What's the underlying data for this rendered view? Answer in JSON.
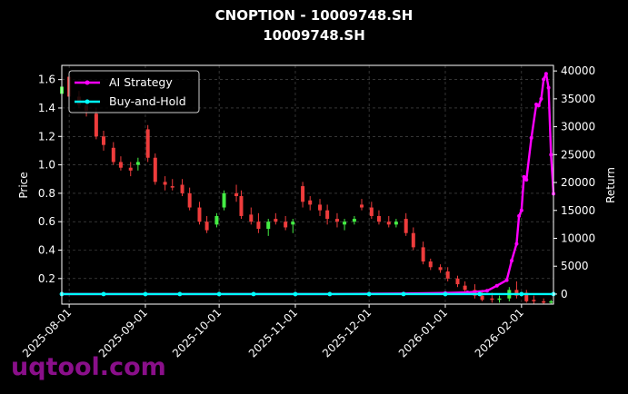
{
  "chart_data": {
    "type": "candlestick-line",
    "title": "CNOPTION - 10009748.SH",
    "subtitle": "10009748.SH",
    "ylabel_left": "Price",
    "ylabel_right": "Return",
    "ylim_left": [
      0.02,
      1.7
    ],
    "ylim_right": [
      -1800,
      41000
    ],
    "y_ticks_left": [
      "0.2",
      "0.4",
      "0.6",
      "0.8",
      "1.0",
      "1.2",
      "1.4",
      "1.6"
    ],
    "y_ticks_right": [
      "0",
      "5000",
      "10000",
      "15000",
      "20000",
      "25000",
      "30000",
      "35000",
      "40000"
    ],
    "x_ticks": [
      "2025-08-01",
      "2025-09-01",
      "2025-10-01",
      "2025-11-01",
      "2025-12-01",
      "2026-01-01",
      "2026-02-01"
    ],
    "xlim": [
      "2025-07-29",
      "2026-02-14"
    ],
    "grid": true,
    "legend_position": "upper-left",
    "colors": {
      "background": "#000000",
      "up_candle": "#44ee44",
      "down_candle": "#ee3c3c",
      "ai_strategy": "#ff00ff",
      "buy_and_hold": "#00ffff",
      "grid": "#555555",
      "watermark": "#8a0f8a"
    },
    "series": [
      {
        "name": "AI Strategy",
        "x": [
          "2025-07-29",
          "2025-08-15",
          "2025-09-01",
          "2025-09-15",
          "2025-10-01",
          "2025-10-15",
          "2025-11-01",
          "2025-11-15",
          "2025-12-01",
          "2025-12-15",
          "2026-01-01",
          "2026-01-10",
          "2026-01-18",
          "2026-01-22",
          "2026-01-26",
          "2026-01-28",
          "2026-01-30",
          "2026-01-31",
          "2026-02-01",
          "2026-02-02",
          "2026-02-03",
          "2026-02-05",
          "2026-02-07",
          "2026-02-08",
          "2026-02-09",
          "2026-02-10",
          "2026-02-11",
          "2026-02-12",
          "2026-02-13",
          "2026-02-14"
        ],
        "values": [
          0,
          0,
          0,
          0,
          0,
          0,
          0,
          0,
          50,
          100,
          200,
          300,
          600,
          1500,
          2500,
          6000,
          9000,
          14000,
          15000,
          21000,
          20500,
          28000,
          34000,
          33800,
          35000,
          38500,
          39500,
          37000,
          25000,
          18000
        ]
      },
      {
        "name": "Buy-and-Hold",
        "x": [
          "2025-07-29",
          "2025-08-15",
          "2025-09-01",
          "2025-09-15",
          "2025-10-01",
          "2025-10-15",
          "2025-11-01",
          "2025-11-15",
          "2025-12-01",
          "2025-12-15",
          "2026-01-01",
          "2026-01-15",
          "2026-02-01",
          "2026-02-14"
        ],
        "values": [
          0,
          0,
          0,
          0,
          0,
          0,
          0,
          0,
          0,
          0,
          0,
          0,
          0,
          0
        ]
      }
    ],
    "candles": {
      "dates": [
        "2025-07-29",
        "2025-08-01",
        "2025-08-05",
        "2025-08-08",
        "2025-08-12",
        "2025-08-15",
        "2025-08-19",
        "2025-08-22",
        "2025-08-26",
        "2025-08-29",
        "2025-09-02",
        "2025-09-05",
        "2025-09-09",
        "2025-09-12",
        "2025-09-16",
        "2025-09-19",
        "2025-09-23",
        "2025-09-26",
        "2025-09-30",
        "2025-10-03",
        "2025-10-08",
        "2025-10-10",
        "2025-10-14",
        "2025-10-17",
        "2025-10-21",
        "2025-10-24",
        "2025-10-28",
        "2025-10-31",
        "2025-11-04",
        "2025-11-07",
        "2025-11-11",
        "2025-11-14",
        "2025-11-18",
        "2025-11-21",
        "2025-11-25",
        "2025-11-28",
        "2025-12-02",
        "2025-12-05",
        "2025-12-09",
        "2025-12-12",
        "2025-12-16",
        "2025-12-19",
        "2025-12-23",
        "2025-12-26",
        "2025-12-30",
        "2026-01-02",
        "2026-01-06",
        "2026-01-09",
        "2026-01-13",
        "2026-01-16",
        "2026-01-20",
        "2026-01-23",
        "2026-01-27",
        "2026-01-30",
        "2026-02-03",
        "2026-02-06",
        "2026-02-10",
        "2026-02-13"
      ],
      "open": [
        1.5,
        1.62,
        1.48,
        1.42,
        1.36,
        1.2,
        1.12,
        1.02,
        0.98,
        1.0,
        1.25,
        1.05,
        0.88,
        0.85,
        0.86,
        0.8,
        0.7,
        0.6,
        0.58,
        0.7,
        0.8,
        0.78,
        0.65,
        0.6,
        0.55,
        0.62,
        0.6,
        0.58,
        0.85,
        0.75,
        0.72,
        0.68,
        0.62,
        0.58,
        0.6,
        0.72,
        0.7,
        0.64,
        0.6,
        0.58,
        0.62,
        0.52,
        0.42,
        0.32,
        0.28,
        0.25,
        0.2,
        0.15,
        0.12,
        0.08,
        0.06,
        0.05,
        0.06,
        0.12,
        0.1,
        0.05,
        0.04,
        0.03
      ],
      "high": [
        1.58,
        1.64,
        1.52,
        1.46,
        1.4,
        1.24,
        1.16,
        1.06,
        1.02,
        1.05,
        1.28,
        1.08,
        0.92,
        0.9,
        0.9,
        0.84,
        0.74,
        0.64,
        0.66,
        0.82,
        0.86,
        0.82,
        0.7,
        0.66,
        0.62,
        0.66,
        0.64,
        0.62,
        0.88,
        0.78,
        0.76,
        0.72,
        0.66,
        0.62,
        0.64,
        0.76,
        0.74,
        0.68,
        0.64,
        0.62,
        0.66,
        0.56,
        0.46,
        0.34,
        0.3,
        0.28,
        0.22,
        0.18,
        0.16,
        0.12,
        0.1,
        0.08,
        0.14,
        0.18,
        0.12,
        0.08,
        0.06,
        0.05
      ],
      "low": [
        1.45,
        1.46,
        1.4,
        1.34,
        1.18,
        1.1,
        1.0,
        0.96,
        0.92,
        0.96,
        1.02,
        0.86,
        0.82,
        0.82,
        0.78,
        0.68,
        0.58,
        0.52,
        0.56,
        0.68,
        0.74,
        0.62,
        0.58,
        0.52,
        0.5,
        0.58,
        0.54,
        0.52,
        0.7,
        0.68,
        0.64,
        0.58,
        0.56,
        0.54,
        0.58,
        0.68,
        0.62,
        0.58,
        0.56,
        0.56,
        0.5,
        0.4,
        0.3,
        0.26,
        0.24,
        0.18,
        0.14,
        0.1,
        0.06,
        0.04,
        0.03,
        0.03,
        0.04,
        0.06,
        0.03,
        0.02,
        0.02,
        0.02
      ],
      "close": [
        1.55,
        1.48,
        1.42,
        1.38,
        1.2,
        1.14,
        1.02,
        0.98,
        0.96,
        1.02,
        1.05,
        0.88,
        0.86,
        0.84,
        0.8,
        0.7,
        0.6,
        0.54,
        0.64,
        0.8,
        0.78,
        0.64,
        0.6,
        0.55,
        0.6,
        0.6,
        0.56,
        0.6,
        0.74,
        0.72,
        0.68,
        0.62,
        0.6,
        0.6,
        0.62,
        0.7,
        0.64,
        0.6,
        0.58,
        0.6,
        0.52,
        0.42,
        0.32,
        0.28,
        0.26,
        0.2,
        0.16,
        0.12,
        0.08,
        0.05,
        0.05,
        0.06,
        0.12,
        0.08,
        0.04,
        0.04,
        0.03,
        0.04
      ]
    }
  },
  "watermark_text": "uqtool.com"
}
